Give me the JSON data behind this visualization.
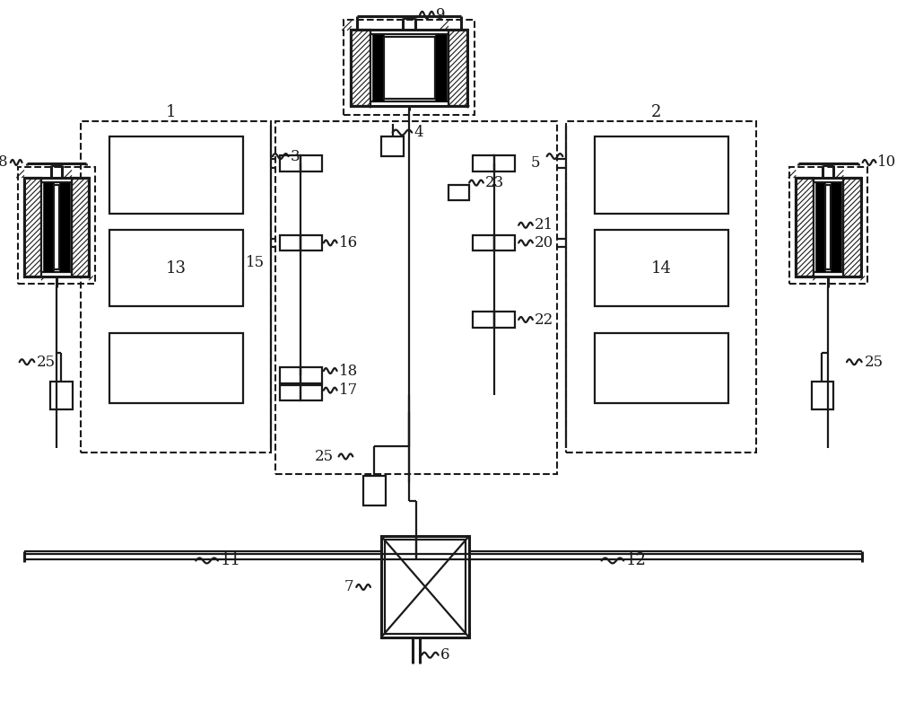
{
  "bg": "#ffffff",
  "lc": "#1a1a1a",
  "lw": 1.6,
  "lw2": 2.2,
  "fig_w": 10.0,
  "fig_h": 7.83,
  "dpi": 100
}
